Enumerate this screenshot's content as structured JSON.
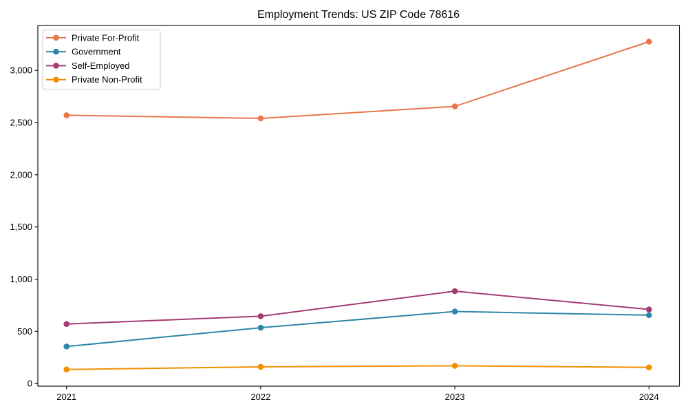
{
  "figure": {
    "background_color": "#ffffff",
    "frame_color": "#000000"
  },
  "chart_data": {
    "type": "line",
    "title": "Employment Trends: US ZIP Code 78616",
    "xlabel": "",
    "ylabel": "",
    "categories": [
      "2021",
      "2022",
      "2023",
      "2024"
    ],
    "series": [
      {
        "name": "Private For-Profit",
        "color": "#E8764C",
        "values": [
          2570,
          2540,
          2655,
          3275
        ]
      },
      {
        "name": "Government",
        "color": "#2E86AB",
        "values": [
          355,
          535,
          690,
          655
        ]
      },
      {
        "name": "Self-Employed",
        "color": "#A23B72",
        "values": [
          570,
          645,
          885,
          710
        ]
      },
      {
        "name": "Private Non-Profit",
        "color": "#F18F01",
        "values": [
          135,
          160,
          170,
          155
        ]
      }
    ],
    "ylim": [
      -25,
      3430
    ],
    "yticks": [
      0,
      500,
      1000,
      1500,
      2000,
      2500,
      3000
    ],
    "ytick_labels": [
      "0",
      "500",
      "1,000",
      "1,500",
      "2,000",
      "2,500",
      "3,000"
    ],
    "grid": false,
    "legend_position": "upper left",
    "marker": "circle"
  }
}
